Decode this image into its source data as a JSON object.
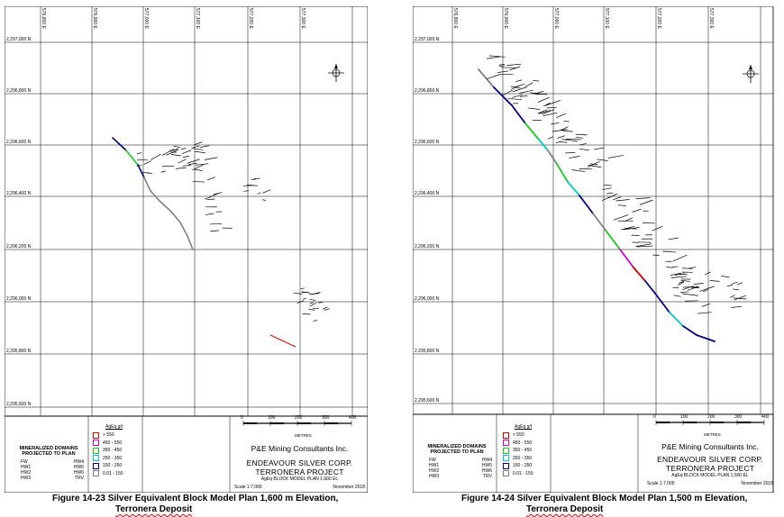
{
  "panels": [
    {
      "id": "left",
      "easting_labels": [
        "576,800 E",
        "576,900 E",
        "577,000 E",
        "577,100 E",
        "577,200 E",
        "577,300 E"
      ],
      "northing_labels": [
        "2,297,000 N",
        "2,296,800 N",
        "2,296,600 N",
        "2,296,400 N",
        "2,296,200 N",
        "2,296,000 N",
        "2,295,800 N",
        "2,295,600 N"
      ],
      "scale_ticks": [
        "0",
        "100",
        "200",
        "300",
        "400"
      ],
      "scale_unit": "METRES",
      "legend_title": "AgEq g/t",
      "legend_items": [
        {
          "label": "> 550",
          "color": "#d40000"
        },
        {
          "label": "450 - 550",
          "color": "#cc00cc"
        },
        {
          "label": "350 - 450",
          "color": "#18c818"
        },
        {
          "label": "250 - 350",
          "color": "#00c8c8"
        },
        {
          "label": "150 - 250",
          "color": "#000080"
        },
        {
          "label": "0.01 - 150",
          "color": "#808080"
        }
      ],
      "domains_title": [
        "MINERALIZED DOMAINS",
        "PROJECTED TO PLAN"
      ],
      "domains": [
        [
          "FW",
          "HW4"
        ],
        [
          "HW1",
          "HW5"
        ],
        [
          "HW2",
          "HW6"
        ],
        [
          "HW3",
          "TRV"
        ]
      ],
      "company": "P&E Mining Consultants Inc.",
      "client": "ENDEAVOUR SILVER CORP.",
      "project": "TERRONERA PROJECT",
      "plan_title": "AgEq BLOCK MODEL PLAN 1,600 EL",
      "scale_text": "Scale 1:7,000",
      "date_text": "November 2018"
    },
    {
      "id": "right",
      "easting_labels": [
        "576,800 E",
        "576,900 E",
        "577,000 E",
        "577,100 E",
        "577,200 E",
        "577,300 E"
      ],
      "northing_labels": [
        "2,297,000 N",
        "2,296,800 N",
        "2,296,600 N",
        "2,296,400 N",
        "2,296,200 N",
        "2,296,000 N",
        "2,295,800 N",
        "2,295,600 N"
      ],
      "scale_ticks": [
        "0",
        "100",
        "200",
        "300",
        "400"
      ],
      "scale_unit": "METRES",
      "legend_title": "AgEq g/t",
      "legend_items": [
        {
          "label": "> 550",
          "color": "#d40000"
        },
        {
          "label": "450 - 550",
          "color": "#cc00cc"
        },
        {
          "label": "350 - 450",
          "color": "#18c818"
        },
        {
          "label": "250 - 350",
          "color": "#00c8c8"
        },
        {
          "label": "150 - 250",
          "color": "#000080"
        },
        {
          "label": "0.01 - 150",
          "color": "#808080"
        }
      ],
      "domains_title": [
        "MINERALIZED DOMAINS",
        "PROJECTED TO PLAN"
      ],
      "domains": [
        [
          "FW",
          "HW4"
        ],
        [
          "HW1",
          "HW5"
        ],
        [
          "HW2",
          "HW6"
        ],
        [
          "HW3",
          "TRV"
        ]
      ],
      "company": "P&E Mining Consultants Inc.",
      "client": "ENDEAVOUR SILVER CORP.",
      "project": "TERRONERA PROJECT",
      "plan_title": "AgEq BLOCK MODEL PLAN 1,500 EL",
      "scale_text": "Scale 1:7,000",
      "date_text": "November 2018"
    }
  ],
  "captions": [
    {
      "line1": "Figure 14-23   Silver Equivalent Block Model Plan 1,600 m Elevation,",
      "line2": "Terronera Deposit"
    },
    {
      "line1": "Figure 14-24   Silver Equivalent Block Model Plan 1,500 m Elevation,",
      "line2": "Terronera Deposit"
    }
  ]
}
